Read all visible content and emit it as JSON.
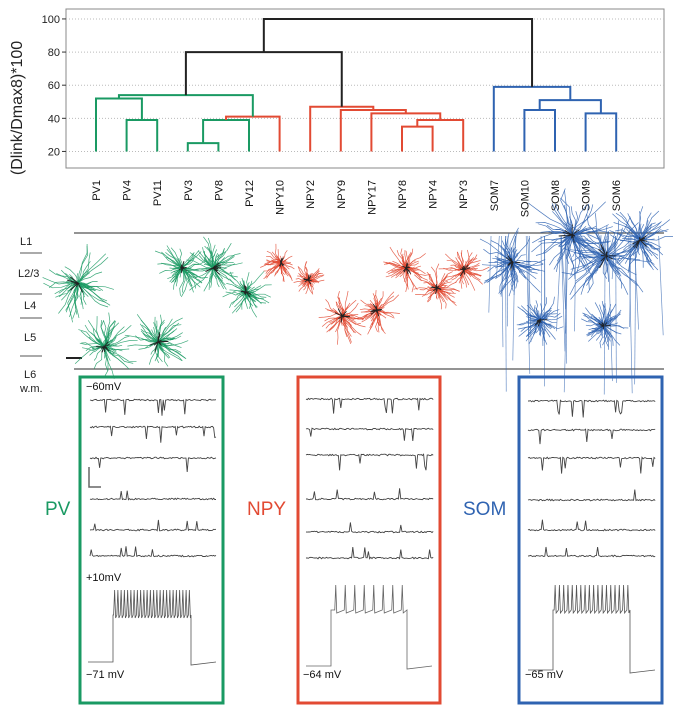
{
  "dendrogram": {
    "ylabel": "(Dlink/Dmax8)*100",
    "yticks": [
      20,
      40,
      60,
      80,
      100
    ],
    "ylim": [
      10,
      106
    ],
    "leaves": [
      "PV1",
      "PV4",
      "PV11",
      "PV3",
      "PV8",
      "PV12",
      "NPY10",
      "NPY2",
      "NPY9",
      "NPY17",
      "NPY8",
      "NPY4",
      "NPY3",
      "SOM7",
      "SOM10",
      "SOM8",
      "SOM9",
      "SOM6"
    ],
    "colors": {
      "pv": "#1a9a63",
      "npy": "#e24a33",
      "som": "#2f63b1",
      "root": "#222222"
    }
  },
  "layers": {
    "labels": [
      "L1",
      "L2/3",
      "L4",
      "L5",
      "L6",
      "w.m."
    ]
  },
  "panels": [
    {
      "name": "PV",
      "top_mv": "−60mV",
      "mid_mv": "+10mV",
      "bottom_mv": "−71 mV",
      "color": "#1a9a63"
    },
    {
      "name": "NPY",
      "bottom_mv": "−64 mV",
      "color": "#e24a33"
    },
    {
      "name": "SOM",
      "bottom_mv": "−65 mV",
      "color": "#2f63b1"
    }
  ]
}
